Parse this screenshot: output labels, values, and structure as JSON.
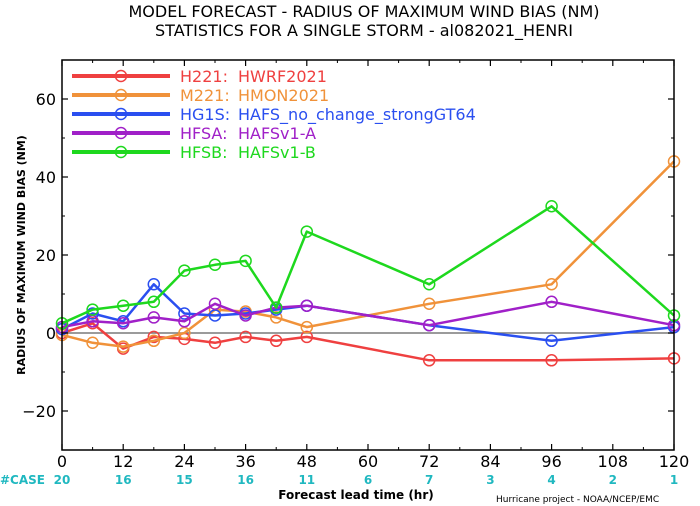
{
  "chart_data": {
    "type": "line",
    "title": "MODEL FORECAST - RADIUS OF MAXIMUM WIND BIAS (NM)",
    "subtitle": "STATISTICS FOR A SINGLE STORM - al082021_HENRI",
    "xlabel": "Forecast lead time (hr)",
    "ylabel": "RADIUS OF MAXIMUM WIND BIAS (NM)",
    "xlim": [
      0,
      120
    ],
    "ylim": [
      -30,
      70
    ],
    "x_ticks": [
      0,
      12,
      24,
      36,
      48,
      60,
      72,
      84,
      96,
      108,
      120
    ],
    "y_ticks": [
      -20,
      0,
      20,
      40,
      60
    ],
    "case_label": "#CASE",
    "case_counts": [
      20,
      16,
      15,
      16,
      11,
      6,
      7,
      3,
      4,
      2,
      1
    ],
    "footer": "Hurricane project - NOAA/NCEP/EMC",
    "legend_position": "top-left",
    "series": [
      {
        "name": "H221:",
        "desc": "HWRF2021",
        "color": "#ef4040",
        "x": [
          0,
          6,
          12,
          18,
          24,
          30,
          36,
          42,
          48,
          72,
          96,
          120
        ],
        "values": [
          0,
          2.5,
          -4,
          -1,
          -1.5,
          -2.5,
          -1,
          -2,
          -1,
          -7,
          -7,
          -6.5
        ]
      },
      {
        "name": "M221:",
        "desc": "HMON2021",
        "color": "#f0923a",
        "x": [
          0,
          6,
          12,
          18,
          24,
          30,
          36,
          42,
          48,
          72,
          96,
          120
        ],
        "values": [
          -0.5,
          -2.5,
          -3.5,
          -2,
          0,
          6,
          5.5,
          4,
          1.5,
          7.5,
          12.5,
          44
        ]
      },
      {
        "name": "HG1S:",
        "desc": "HAFS_no_change_strongGT64",
        "color": "#2a4ff0",
        "x": [
          0,
          6,
          12,
          18,
          24,
          30,
          36,
          42,
          48,
          72,
          96,
          120
        ],
        "values": [
          1,
          5,
          3,
          12.5,
          5,
          4.5,
          5,
          6,
          7,
          2,
          -2,
          1.5
        ]
      },
      {
        "name": "HFSA:",
        "desc": "HAFSv1-A",
        "color": "#a020c8",
        "x": [
          0,
          6,
          12,
          18,
          24,
          30,
          36,
          42,
          48,
          72,
          96,
          120
        ],
        "values": [
          1.5,
          3,
          2.5,
          4,
          3,
          7.5,
          4.5,
          6.5,
          7,
          2,
          8,
          2
        ]
      },
      {
        "name": "HFSB:",
        "desc": "HAFSv1-B",
        "color": "#1ed81e",
        "x": [
          0,
          6,
          12,
          18,
          24,
          30,
          36,
          42,
          48,
          72,
          96,
          120
        ],
        "values": [
          2.5,
          6,
          7,
          8,
          16,
          17.5,
          18.5,
          6.5,
          26,
          12.5,
          32.5,
          4.5
        ]
      }
    ]
  }
}
